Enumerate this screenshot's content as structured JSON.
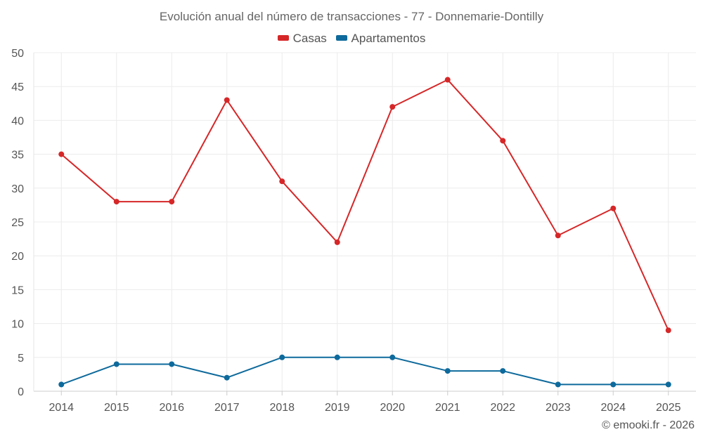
{
  "chart_data": {
    "type": "line",
    "title": "Evolución anual del número de transacciones - 77 - Donnemarie-Dontilly",
    "x": [
      "2014",
      "2015",
      "2016",
      "2017",
      "2018",
      "2019",
      "2020",
      "2021",
      "2022",
      "2023",
      "2024",
      "2025"
    ],
    "series": [
      {
        "name": "Casas",
        "color": "#d62728",
        "values": [
          35,
          28,
          28,
          43,
          31,
          22,
          42,
          46,
          37,
          23,
          27,
          9
        ]
      },
      {
        "name": "Apartamentos",
        "color": "#0e6a9c",
        "values": [
          1,
          4,
          4,
          2,
          5,
          5,
          5,
          3,
          3,
          1,
          1,
          1
        ]
      }
    ],
    "yticks": [
      "0",
      "5",
      "10",
      "15",
      "20",
      "25",
      "30",
      "35",
      "40",
      "45",
      "50"
    ],
    "ylim": [
      0,
      50
    ],
    "xlabel": "",
    "ylabel": "",
    "grid": true,
    "legend_position": "top-center"
  },
  "credit": "© emooki.fr - 2026"
}
